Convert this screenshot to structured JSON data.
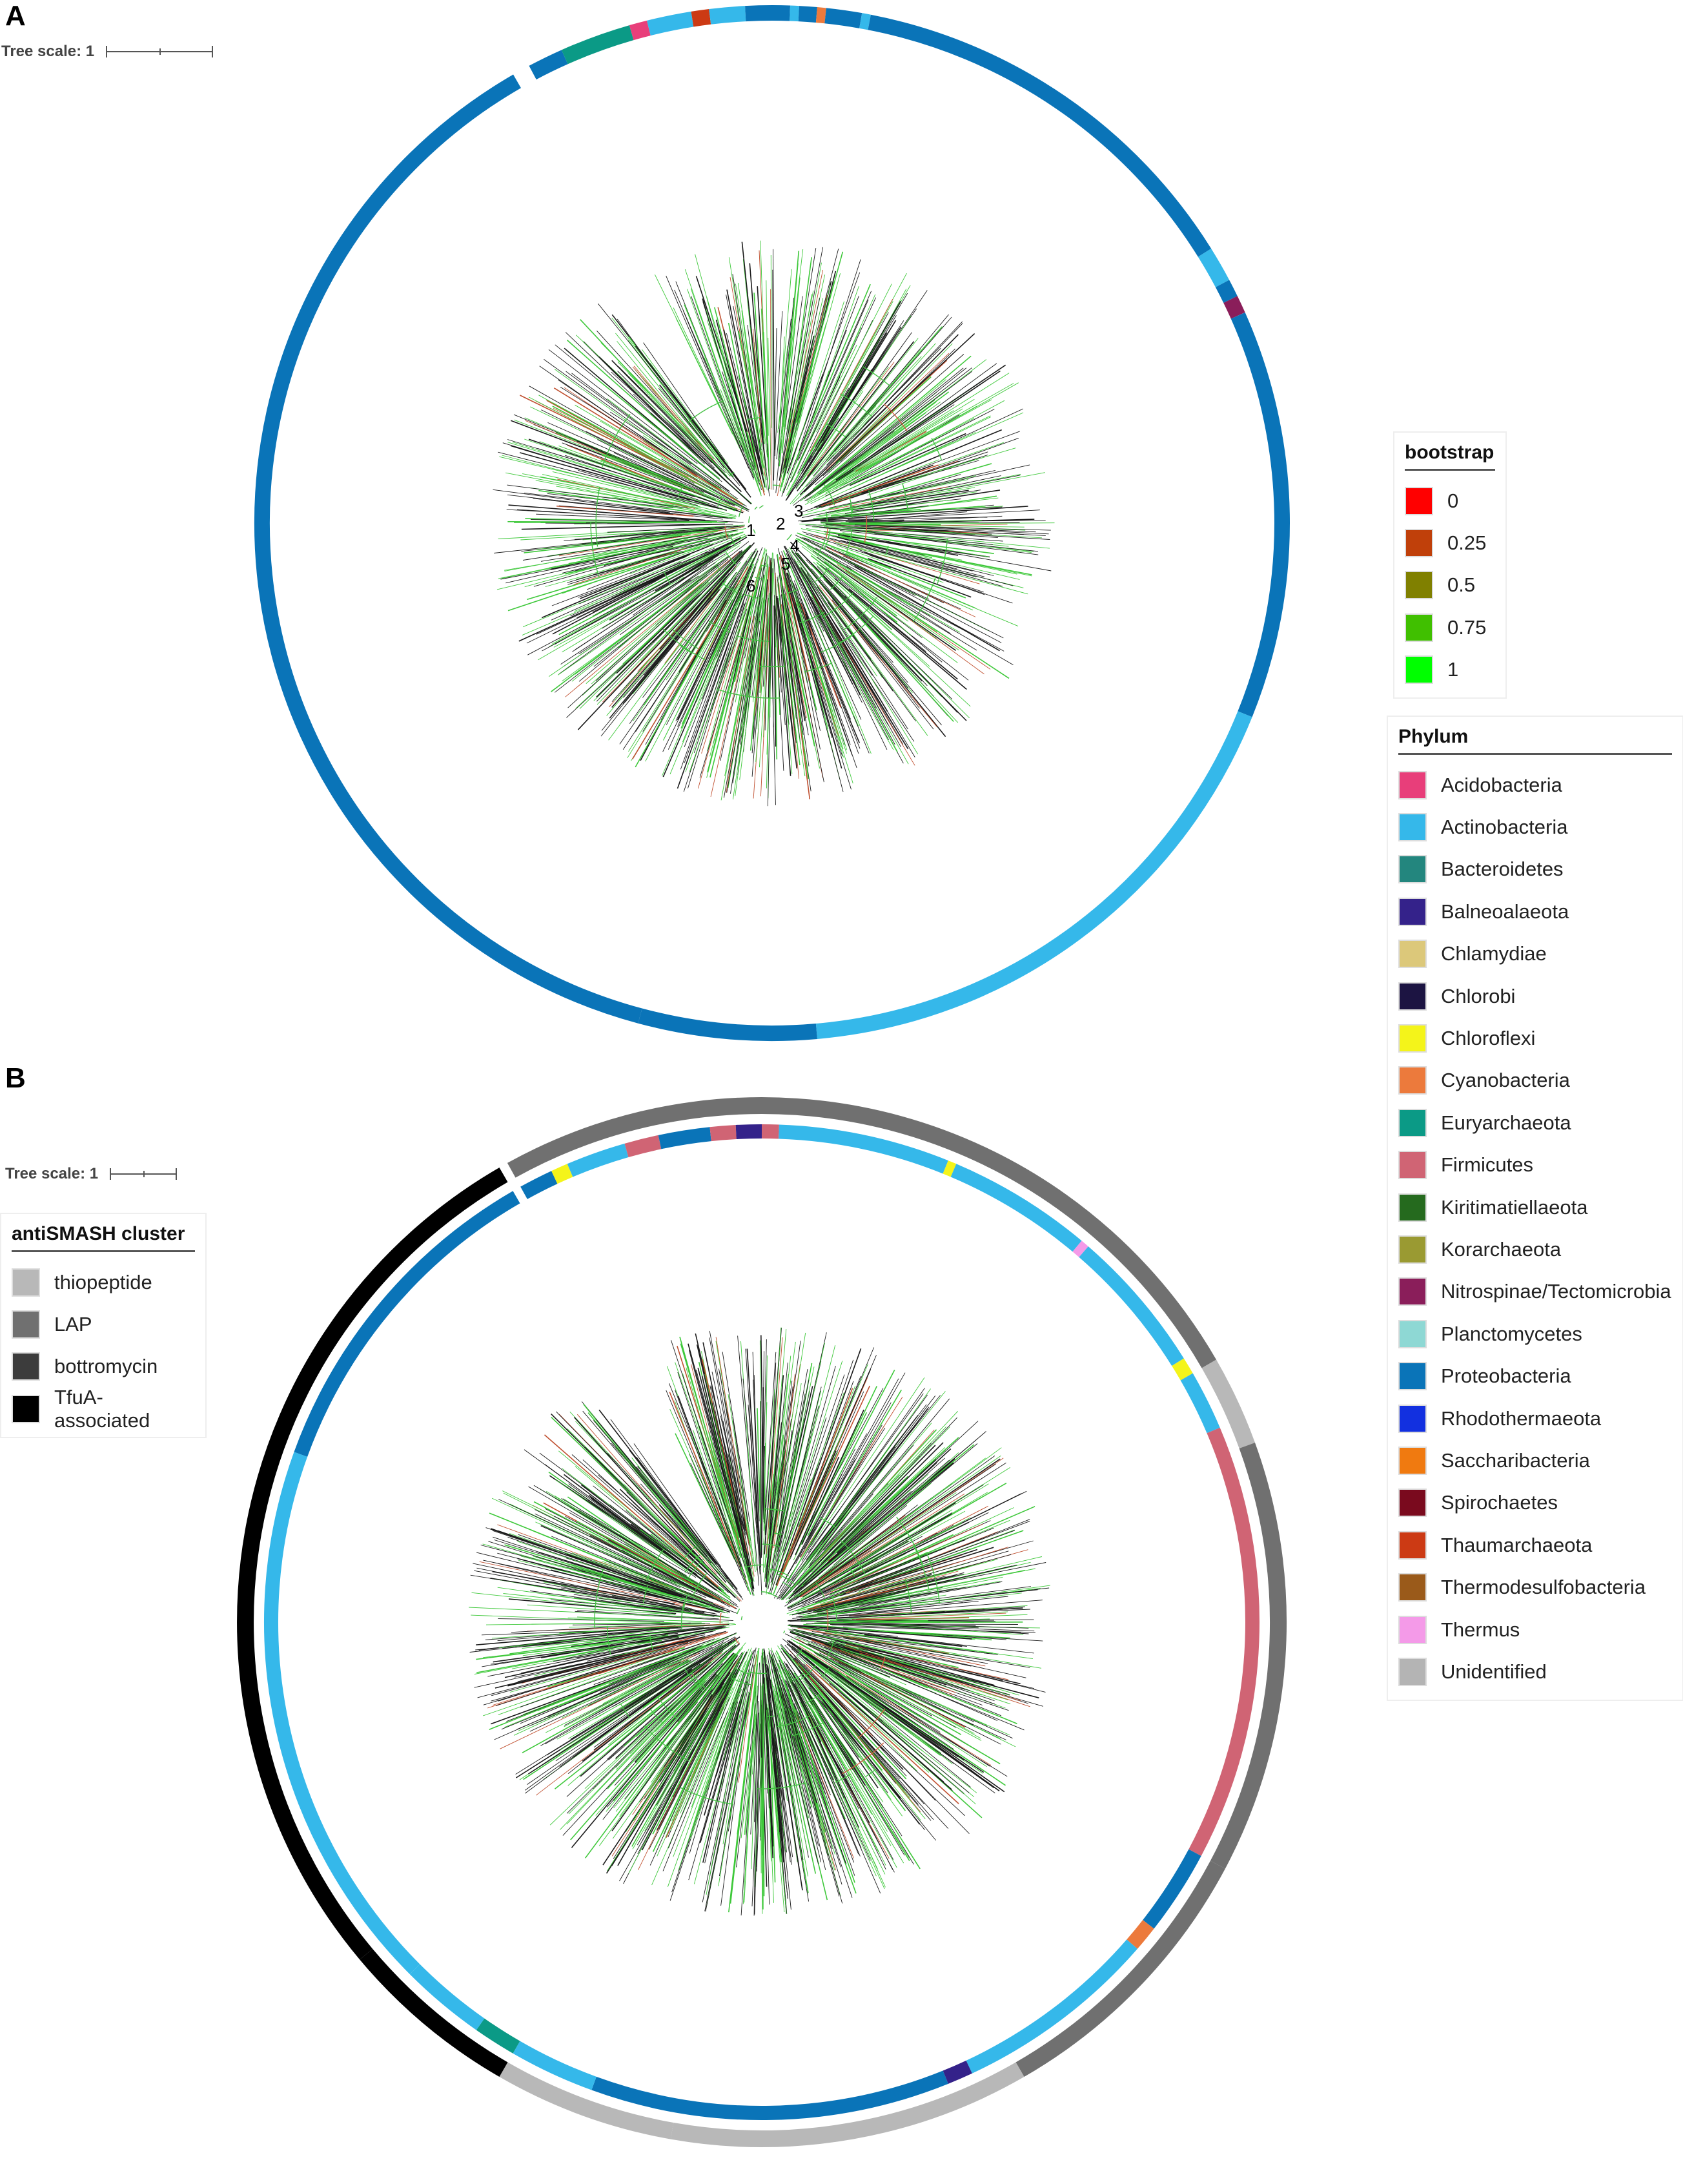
{
  "panels": [
    {
      "label": "A",
      "tree_scale": "Tree scale: 1"
    },
    {
      "label": "B",
      "tree_scale": "Tree scale: 1"
    }
  ],
  "node_numbers": [
    "1",
    "2",
    "3",
    "4",
    "5",
    "6"
  ],
  "legends": {
    "bootstrap": {
      "title": "bootstrap",
      "items": [
        {
          "label": "0",
          "color": "#ff0000"
        },
        {
          "label": "0.25",
          "color": "#c0400a"
        },
        {
          "label": "0.5",
          "color": "#808000"
        },
        {
          "label": "0.75",
          "color": "#40c000"
        },
        {
          "label": "1",
          "color": "#00ff00"
        }
      ]
    },
    "phylum": {
      "title": "Phylum",
      "items": [
        {
          "label": "Acidobacteria",
          "color": "#e83e7a"
        },
        {
          "label": "Actinobacteria",
          "color": "#35b8ea"
        },
        {
          "label": "Bacteroidetes",
          "color": "#23867e"
        },
        {
          "label": "Balneoalaeota",
          "color": "#34228a"
        },
        {
          "label": "Chlamydiae",
          "color": "#dcc87a"
        },
        {
          "label": "Chlorobi",
          "color": "#1c1442"
        },
        {
          "label": "Chloroflexi",
          "color": "#f4f41a"
        },
        {
          "label": "Cyanobacteria",
          "color": "#ec7a3c"
        },
        {
          "label": "Euryarchaeota",
          "color": "#0b9a86"
        },
        {
          "label": "Firmicutes",
          "color": "#d06474"
        },
        {
          "label": "Kiritimatiellaeota",
          "color": "#256a1e"
        },
        {
          "label": "Korarchaeota",
          "color": "#9a9a32"
        },
        {
          "label": "Nitrospinae/Tectomicrobia",
          "color": "#8a1e5a"
        },
        {
          "label": "Planctomycetes",
          "color": "#8ed8d4"
        },
        {
          "label": "Proteobacteria",
          "color": "#0a74b8"
        },
        {
          "label": "Rhodothermaeota",
          "color": "#1230e0"
        },
        {
          "label": "Saccharibacteria",
          "color": "#f07a10"
        },
        {
          "label": "Spirochaetes",
          "color": "#7a0a1e"
        },
        {
          "label": "Thaumarchaeota",
          "color": "#cc3a14"
        },
        {
          "label": "Thermodesulfobacteria",
          "color": "#9a5a1a"
        },
        {
          "label": "Thermus",
          "color": "#f49ae8"
        },
        {
          "label": "Unidentified",
          "color": "#b4b4b4"
        }
      ]
    },
    "antismash": {
      "title": "antiSMASH cluster",
      "items": [
        {
          "label": "thiopeptide",
          "color": "#b8b8b8"
        },
        {
          "label": "LAP",
          "color": "#707070"
        },
        {
          "label": "bottromycin",
          "color": "#3c3c3c"
        },
        {
          "label": "TfuA-associated",
          "color": "#000000"
        }
      ]
    }
  }
}
